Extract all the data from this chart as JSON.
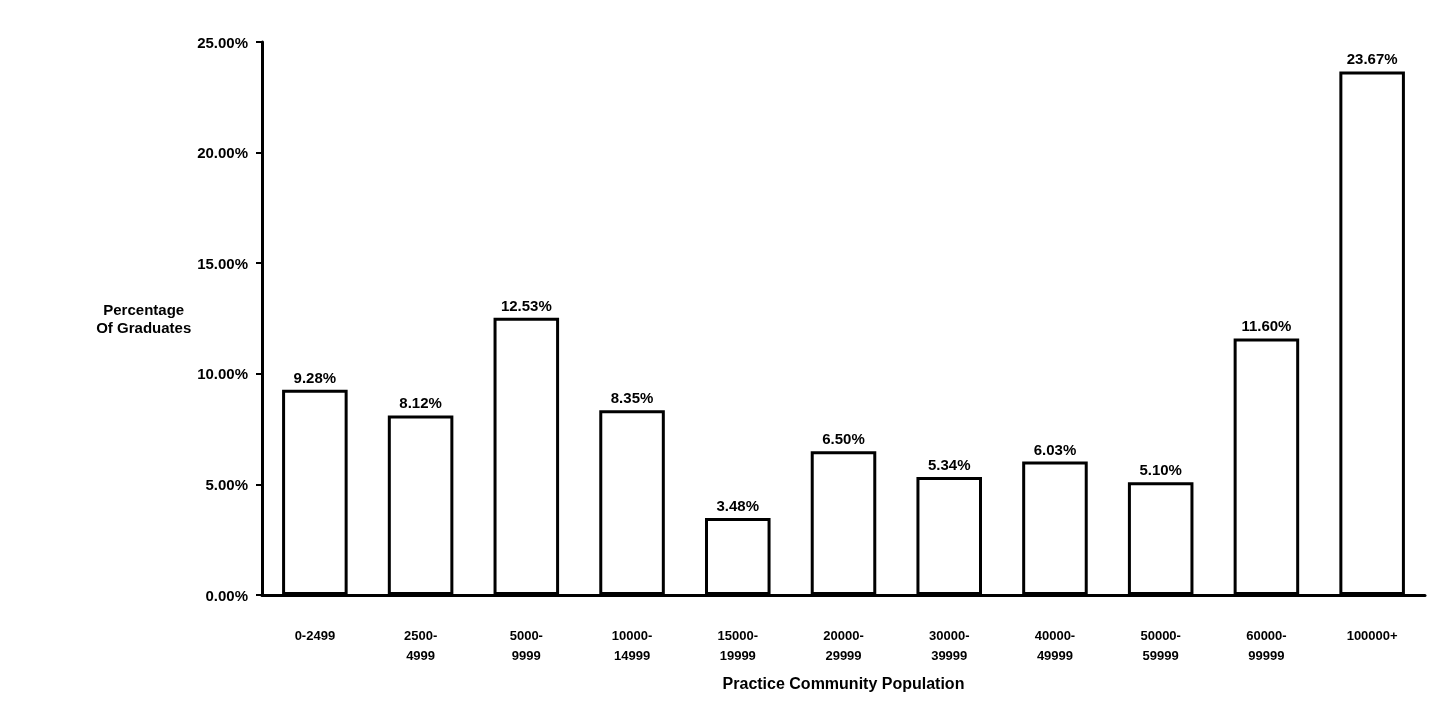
{
  "chart_data": {
    "type": "bar",
    "xlabel": "Practice Community Population",
    "ylabel": "Percentage\nOf Graduates",
    "categories": [
      "0-2499",
      "2500-\n4999",
      "5000-\n9999",
      "10000-\n14999",
      "15000-\n19999",
      "20000-\n29999",
      "30000-\n39999",
      "40000-\n49999",
      "50000-\n59999",
      "60000-\n99999",
      "100000+"
    ],
    "values": [
      9.28,
      8.12,
      12.53,
      8.35,
      3.48,
      6.5,
      5.34,
      6.03,
      5.1,
      11.6,
      23.67
    ],
    "value_labels": [
      "9.28%",
      "8.12%",
      "12.53%",
      "8.35%",
      "3.48%",
      "6.50%",
      "5.34%",
      "6.03%",
      "5.10%",
      "11.60%",
      "23.67%"
    ],
    "color": "#ffffff",
    "ylim": [
      0,
      25
    ],
    "yticks": [
      {
        "value": 0,
        "label": "0.00%"
      },
      {
        "value": 5,
        "label": "5.00%"
      },
      {
        "value": 10,
        "label": "10.00%"
      },
      {
        "value": 15,
        "label": "15.00%"
      },
      {
        "value": 20,
        "label": "20.00%"
      },
      {
        "value": 25,
        "label": "25.00%"
      }
    ],
    "grid": false
  }
}
